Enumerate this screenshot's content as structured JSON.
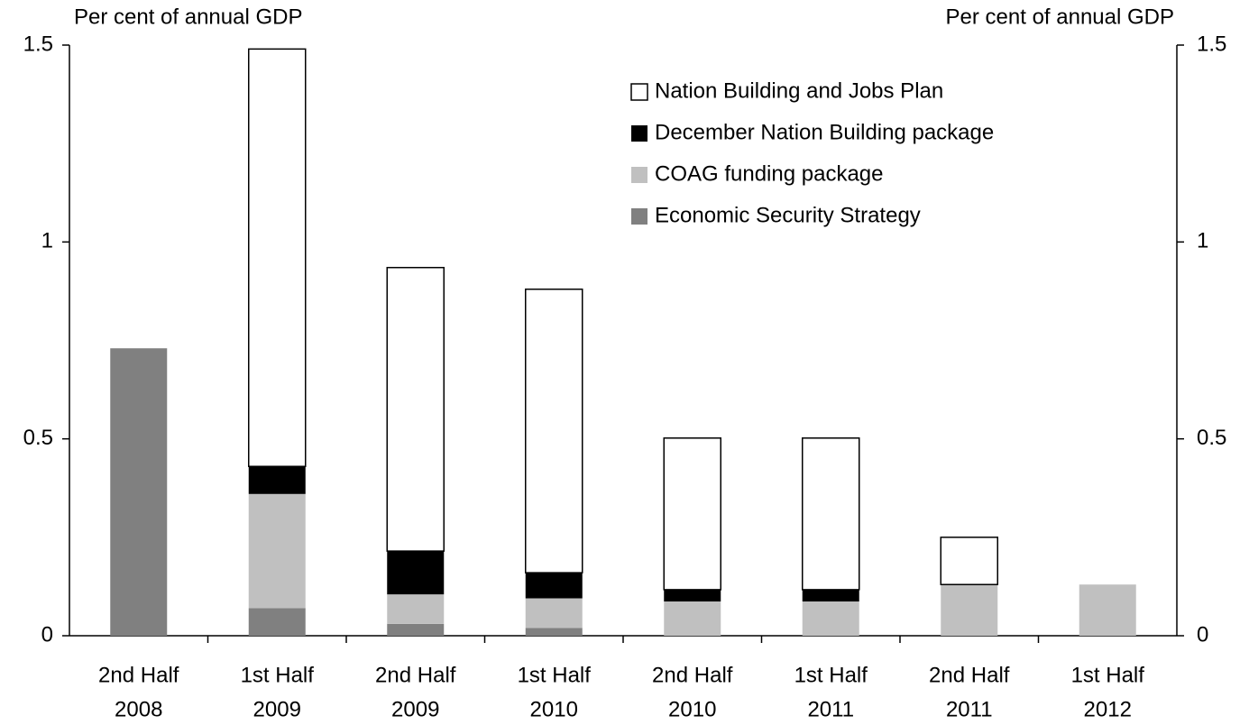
{
  "chart_data": {
    "type": "stacked_bar",
    "y_label": "Per cent of annual GDP",
    "y2_label": "Per cent of annual GDP",
    "categories": [
      [
        "2nd Half",
        "2008"
      ],
      [
        "1st Half",
        "2009"
      ],
      [
        "2nd Half",
        "2009"
      ],
      [
        "1st Half",
        "2010"
      ],
      [
        "2nd Half",
        "2010"
      ],
      [
        "1st Half",
        "2011"
      ],
      [
        "2nd Half",
        "2011"
      ],
      [
        "1st Half",
        "2012"
      ]
    ],
    "series": [
      {
        "name": "Economic Security Strategy",
        "color": "#808080",
        "values": [
          0.73,
          0.07,
          0.03,
          0.02,
          null,
          null,
          null,
          null
        ]
      },
      {
        "name": "COAG funding package",
        "color": "#c0c0c0",
        "values": [
          null,
          0.29,
          0.075,
          0.075,
          0.087,
          0.087,
          0.13,
          0.13
        ]
      },
      {
        "name": "December Nation Building package",
        "color": "#000000",
        "values": [
          null,
          0.07,
          0.11,
          0.065,
          0.03,
          0.03,
          null,
          null
        ]
      },
      {
        "name": "Nation Building and Jobs Plan",
        "color": "#ffffff",
        "values": [
          null,
          1.06,
          0.72,
          0.72,
          0.385,
          0.385,
          0.12,
          null
        ]
      }
    ],
    "ylim": [
      0,
      1.5
    ],
    "yticks": [
      0,
      0.5,
      1,
      1.5
    ],
    "y2lim": [
      0,
      1.5
    ],
    "y2ticks": [
      0,
      0.5,
      1,
      1.5
    ]
  }
}
